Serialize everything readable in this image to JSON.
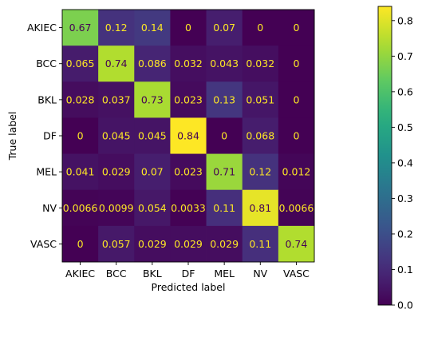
{
  "chart_data": {
    "type": "heatmap",
    "title": "",
    "xlabel": "Predicted label",
    "ylabel": "True label",
    "x_categories": [
      "AKIEC",
      "BCC",
      "BKL",
      "DF",
      "MEL",
      "NV",
      "VASC"
    ],
    "y_categories": [
      "AKIEC",
      "BCC",
      "BKL",
      "DF",
      "MEL",
      "NV",
      "VASC"
    ],
    "values": [
      [
        0.67,
        0.12,
        0.14,
        0,
        0.07,
        0,
        0
      ],
      [
        0.065,
        0.74,
        0.086,
        0.032,
        0.043,
        0.032,
        0
      ],
      [
        0.028,
        0.037,
        0.73,
        0.023,
        0.13,
        0.051,
        0
      ],
      [
        0,
        0.045,
        0.045,
        0.84,
        0,
        0.068,
        0
      ],
      [
        0.041,
        0.029,
        0.07,
        0.023,
        0.71,
        0.12,
        0.012
      ],
      [
        0.0066,
        0.0099,
        0.054,
        0.0033,
        0.11,
        0.81,
        0.0066
      ],
      [
        0,
        0.057,
        0.029,
        0.029,
        0.029,
        0.11,
        0.74
      ]
    ],
    "value_labels": [
      [
        "0.67",
        "0.12",
        "0.14",
        "0",
        "0.07",
        "0",
        "0"
      ],
      [
        "0.065",
        "0.74",
        "0.086",
        "0.032",
        "0.043",
        "0.032",
        "0"
      ],
      [
        "0.028",
        "0.037",
        "0.73",
        "0.023",
        "0.13",
        "0.051",
        "0"
      ],
      [
        "0",
        "0.045",
        "0.045",
        "0.84",
        "0",
        "0.068",
        "0"
      ],
      [
        "0.041",
        "0.029",
        "0.07",
        "0.023",
        "0.71",
        "0.12",
        "0.012"
      ],
      [
        "0.0066",
        "0.0099",
        "0.054",
        "0.0033",
        "0.11",
        "0.81",
        "0.0066"
      ],
      [
        "0",
        "0.057",
        "0.029",
        "0.029",
        "0.029",
        "0.11",
        "0.74"
      ]
    ],
    "colormap": "viridis",
    "color_range": [
      0,
      0.84
    ],
    "colorbar": {
      "ticks": [
        0.0,
        0.1,
        0.2,
        0.3,
        0.4,
        0.5,
        0.6,
        0.7,
        0.8
      ],
      "tick_labels": [
        "0.0",
        "0.1",
        "0.2",
        "0.3",
        "0.4",
        "0.5",
        "0.6",
        "0.7",
        "0.8"
      ],
      "placement": "right"
    },
    "text_colors": {
      "light_cells": "#440154",
      "dark_cells": "#fde725"
    },
    "grid": false
  }
}
